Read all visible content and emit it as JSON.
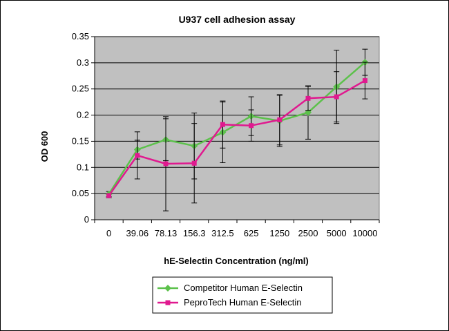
{
  "chart_data": {
    "type": "line",
    "title": "U937 cell adhesion assay",
    "xlabel": "hE-Selectin Concentration (ng/ml)",
    "ylabel": "OD 600",
    "categories": [
      "0",
      "39.06",
      "78.13",
      "156.3",
      "312.5",
      "625",
      "1250",
      "2500",
      "5000",
      "10000"
    ],
    "ylim": [
      0,
      0.35
    ],
    "yticks": [
      "0",
      "0.05",
      "0.1",
      "0.15",
      "0.2",
      "0.25",
      "0.3",
      "0.35"
    ],
    "grid": true,
    "legend_position": "bottom",
    "plot_background": "#c0c0c0",
    "series": [
      {
        "name": "Competitor Human E-Selectin",
        "color": "#5cc14b",
        "marker": "diamond",
        "values": [
          0.049,
          0.134,
          0.153,
          0.141,
          0.167,
          0.198,
          0.189,
          0.205,
          0.254,
          0.301
        ],
        "error": [
          0.005,
          0.018,
          0.04,
          0.063,
          0.058,
          0.037,
          0.049,
          0.051,
          0.07,
          0.025
        ]
      },
      {
        "name": "PeproTech Human E-Selectin",
        "color": "#e0198f",
        "marker": "square",
        "values": [
          0.046,
          0.123,
          0.107,
          0.108,
          0.182,
          0.18,
          0.191,
          0.232,
          0.235,
          0.266
        ],
        "error": [
          0.004,
          0.045,
          0.09,
          0.076,
          0.045,
          0.03,
          0.048,
          0.023,
          0.048,
          0.035
        ]
      }
    ]
  }
}
